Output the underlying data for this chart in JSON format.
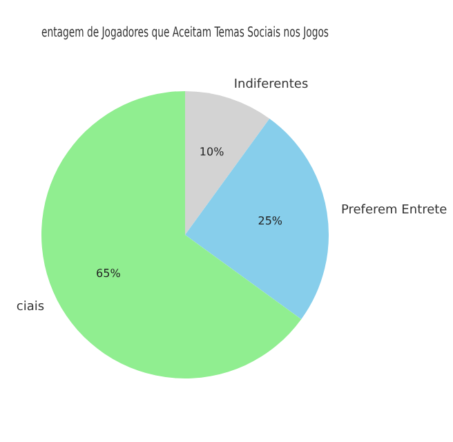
{
  "chart_data": {
    "type": "pie",
    "title": "entagem de Jogadores que Aceitam Temas Sociais nos Jogos",
    "categories": [
      "Indiferentes",
      "Preferem Entrete",
      "ciais"
    ],
    "values": [
      10,
      25,
      65
    ],
    "colors": [
      "#d3d3d3",
      "#87ceeb",
      "#90ee90"
    ],
    "value_labels": [
      "10%",
      "25%",
      "65%"
    ],
    "legend": false
  }
}
